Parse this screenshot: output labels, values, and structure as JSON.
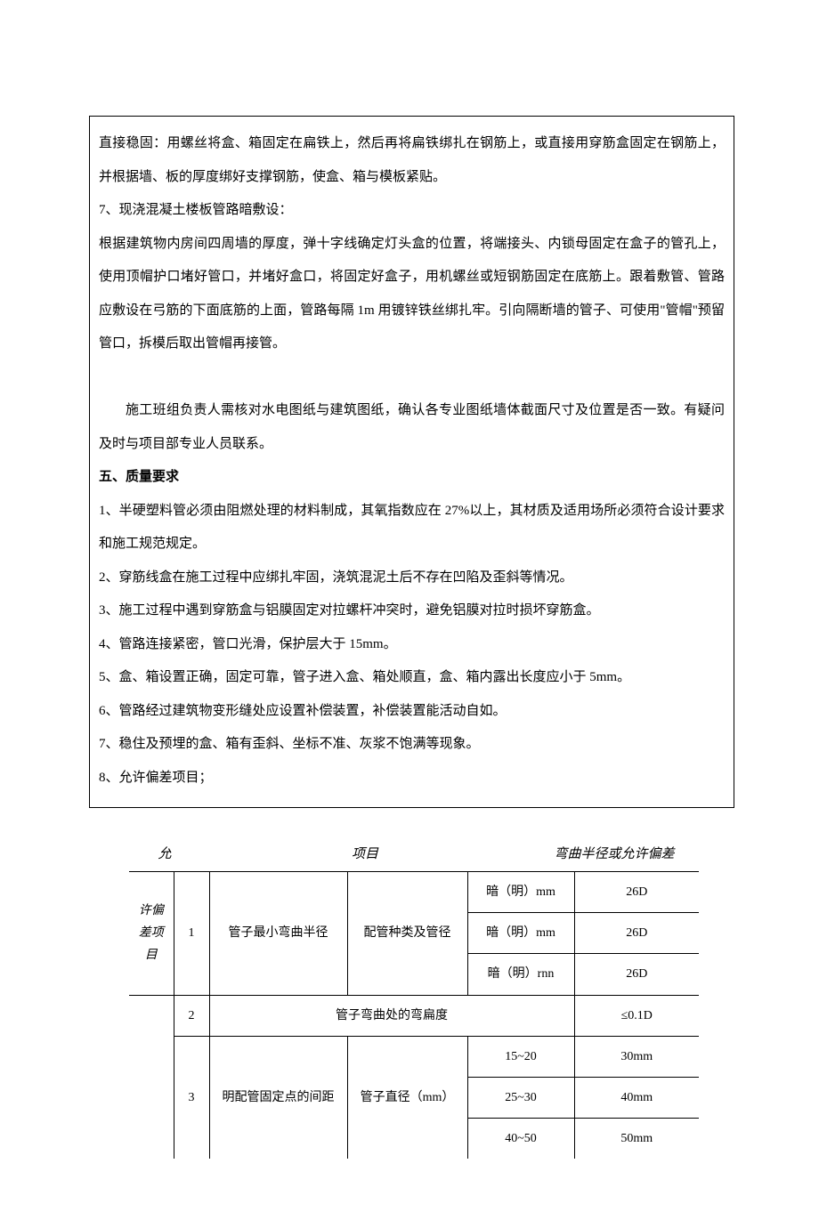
{
  "box": {
    "p1": "直接稳固：用螺丝将盒、箱固定在扁铁上，然后再将扁铁绑扎在钢筋上，或直接用穿筋盒固定在钢筋上，并根据墙、板的厚度绑好支撑钢筋，使盒、箱与模板紧贴。",
    "p2": "7、现浇混凝土楼板管路暗敷设：",
    "p3": "根据建筑物内房间四周墙的厚度，弹十字线确定灯头盒的位置，将端接头、内锁母固定在盒子的管孔上，使用顶帽护口堵好管口，并堵好盒口，将固定好盒子，用机螺丝或短钢筋固定在底筋上。跟着敷管、管路应敷设在弓筋的下面底筋的上面，管路每隔 1m 用镀锌铁丝绑扎牢。引向隔断墙的管子、可使用\"管帽\"预留管口，拆模后取出管帽再接管。",
    "p4": "施工班组负责人需核对水电图纸与建筑图纸，确认各专业图纸墙体截面尺寸及位置是否一致。有疑问及时与项目部专业人员联系。",
    "sectionTitle": "五、质量要求",
    "q1": "1、半硬塑料管必须由阻燃处理的材料制成，其氧指数应在 27%以上，其材质及适用场所必须符合设计要求和施工规范规定。",
    "q2": "2、穿筋线盒在施工过程中应绑扎牢固，浇筑混泥土后不存在凹陷及歪斜等情况。",
    "q3": "3、施工过程中遇到穿筋盒与铝膜固定对拉螺杆冲突时，避免铝膜对拉时损坏穿筋盒。",
    "q4": "4、管路连接紧密，管口光滑，保护层大于 15mm。",
    "q5": "5、盒、箱设置正确，固定可靠，管子进入盒、箱处顺直，盒、箱内露出长度应小于 5mm。",
    "q6": "6、管路经过建筑物变形缝处应设置补偿装置，补偿装置能活动自如。",
    "q7": "7、稳住及预埋的盒、箱有歪斜、坐标不准、灰浆不饱满等现象。",
    "q8": "8、允许偏差项目；"
  },
  "tableHeader": {
    "left": "允",
    "mid": "项目",
    "right": "弯曲半径或允许偏差"
  },
  "table": {
    "sideLabel": "许偏差项目",
    "row1": {
      "num": "1",
      "desc": "管子最小弯曲半径",
      "mid": "配管种类及管径",
      "v1": "暗（明）mm",
      "r1": "26D",
      "v2": "暗（明）mm",
      "r2": "26D",
      "v3": "暗（明）rnn",
      "r3": "26D"
    },
    "row2": {
      "num": "2",
      "desc": "管子弯曲处的弯扁度",
      "val": "≤0.1D"
    },
    "row3": {
      "num": "3",
      "desc": "明配管固定点的间距",
      "mid": "管子直径（mm）",
      "v1": "15~20",
      "r1": "30mm",
      "v2": "25~30",
      "r2": "40mm",
      "v3": "40~50",
      "r3": "50mm"
    }
  }
}
